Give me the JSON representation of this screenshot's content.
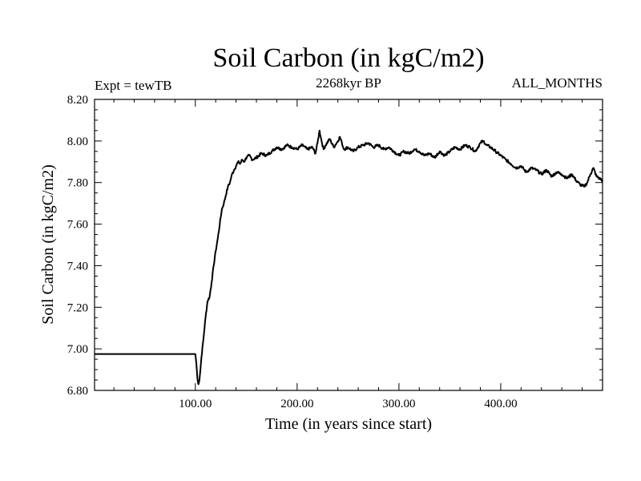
{
  "chart_data": {
    "type": "line",
    "title": "Soil Carbon (in kgC/m2)",
    "subtitle": "2268kyr BP",
    "left_label": "Expt = tewTB",
    "right_label": "ALL_MONTHS",
    "xlabel": "Time (in years since start)",
    "ylabel": "Soil Carbon (in kgC/m2)",
    "xlim": [
      1,
      500
    ],
    "ylim": [
      6.8,
      8.2
    ],
    "xticks": [
      100,
      200,
      300,
      400
    ],
    "xtick_labels": [
      "100.00",
      "200.00",
      "300.00",
      "400.00"
    ],
    "yticks": [
      6.8,
      7.0,
      7.2,
      7.4,
      7.6,
      7.8,
      8.0,
      8.2
    ],
    "ytick_labels": [
      "6.80",
      "7.00",
      "7.20",
      "7.40",
      "7.60",
      "7.80",
      "8.00",
      "8.20"
    ],
    "line_color": "#000000",
    "series": [
      {
        "name": "Soil Carbon",
        "x": [
          1,
          50,
          100,
          101,
          102,
          103,
          104,
          105,
          106,
          108,
          110,
          112,
          114,
          116,
          118,
          120,
          122,
          124,
          126,
          128,
          130,
          132,
          134,
          136,
          138,
          140,
          142,
          144,
          146,
          148,
          150,
          153,
          156,
          160,
          165,
          170,
          175,
          180,
          185,
          190,
          195,
          200,
          205,
          210,
          215,
          218,
          220,
          222,
          224,
          226,
          228,
          232,
          236,
          240,
          242,
          244,
          246,
          250,
          255,
          260,
          265,
          270,
          275,
          280,
          285,
          290,
          295,
          300,
          305,
          310,
          315,
          320,
          325,
          330,
          335,
          340,
          345,
          350,
          355,
          360,
          365,
          370,
          375,
          380,
          383,
          386,
          390,
          395,
          400,
          405,
          410,
          415,
          420,
          425,
          430,
          435,
          440,
          445,
          450,
          455,
          460,
          465,
          470,
          474,
          478,
          482,
          485,
          488,
          491,
          494,
          497,
          500
        ],
        "values": [
          6.975,
          6.975,
          6.975,
          6.93,
          6.86,
          6.83,
          6.85,
          6.9,
          6.96,
          7.05,
          7.15,
          7.23,
          7.25,
          7.32,
          7.4,
          7.47,
          7.53,
          7.6,
          7.67,
          7.7,
          7.74,
          7.78,
          7.8,
          7.84,
          7.86,
          7.88,
          7.9,
          7.89,
          7.91,
          7.9,
          7.92,
          7.93,
          7.91,
          7.92,
          7.94,
          7.93,
          7.95,
          7.97,
          7.96,
          7.98,
          7.97,
          7.96,
          7.98,
          7.96,
          7.97,
          7.94,
          7.99,
          8.05,
          8.0,
          7.96,
          7.98,
          8.01,
          7.97,
          8.0,
          8.02,
          7.99,
          7.96,
          7.97,
          7.95,
          7.97,
          7.98,
          7.99,
          7.97,
          7.98,
          7.96,
          7.97,
          7.95,
          7.93,
          7.95,
          7.94,
          7.96,
          7.95,
          7.93,
          7.94,
          7.92,
          7.95,
          7.93,
          7.95,
          7.97,
          7.96,
          7.98,
          7.97,
          7.95,
          7.99,
          8.0,
          7.98,
          7.97,
          7.95,
          7.93,
          7.91,
          7.89,
          7.87,
          7.88,
          7.85,
          7.87,
          7.86,
          7.84,
          7.86,
          7.83,
          7.85,
          7.84,
          7.82,
          7.84,
          7.81,
          7.79,
          7.78,
          7.8,
          7.84,
          7.87,
          7.83,
          7.82,
          7.81
        ]
      }
    ]
  }
}
